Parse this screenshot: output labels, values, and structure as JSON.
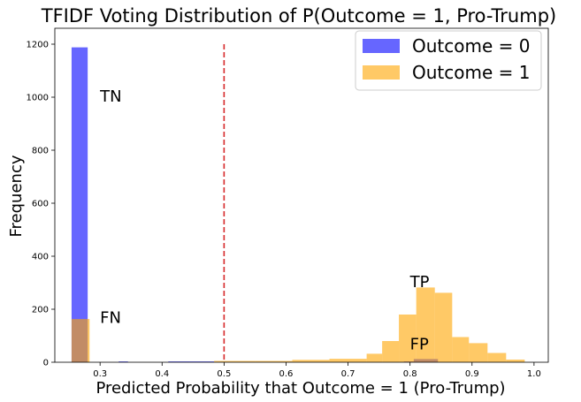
{
  "chart_data": {
    "type": "bar",
    "title": "TFIDF Voting Distribution of P(Outcome = 1, Pro-Trump)",
    "xlabel": "Predicted Probability that Outcome = 1 (Pro-Trump)",
    "ylabel": "Frequency",
    "xlim": [
      0.227,
      1.023
    ],
    "ylim": [
      0,
      1260
    ],
    "xticks": [
      "0.3",
      "0.4",
      "0.5",
      "0.6",
      "0.7",
      "0.8",
      "0.9",
      "1.0"
    ],
    "yticks": [
      "0",
      "200",
      "400",
      "600",
      "800",
      "1000",
      "1200"
    ],
    "threshold": 0.5,
    "threshold_color": "#d62728",
    "series": [
      {
        "name": "Outcome = 0",
        "color": "#0000ff",
        "opacity": 0.6,
        "bins": [
          {
            "x0": 0.254,
            "x1": 0.28,
            "y": 1188
          },
          {
            "x0": 0.33,
            "x1": 0.345,
            "y": 3
          },
          {
            "x0": 0.41,
            "x1": 0.445,
            "y": 3
          },
          {
            "x0": 0.445,
            "x1": 0.484,
            "y": 3
          },
          {
            "x0": 0.79,
            "x1": 0.806,
            "y": 3
          },
          {
            "x0": 0.806,
            "x1": 0.845,
            "y": 12
          }
        ]
      },
      {
        "name": "Outcome = 1",
        "color": "#ffa500",
        "opacity": 0.6,
        "bins": [
          {
            "x0": 0.254,
            "x1": 0.283,
            "y": 163
          },
          {
            "x0": 0.484,
            "x1": 0.55,
            "y": 5
          },
          {
            "x0": 0.55,
            "x1": 0.61,
            "y": 5
          },
          {
            "x0": 0.61,
            "x1": 0.67,
            "y": 9
          },
          {
            "x0": 0.67,
            "x1": 0.73,
            "y": 13
          },
          {
            "x0": 0.73,
            "x1": 0.755,
            "y": 32
          },
          {
            "x0": 0.755,
            "x1": 0.782,
            "y": 80
          },
          {
            "x0": 0.782,
            "x1": 0.81,
            "y": 180
          },
          {
            "x0": 0.81,
            "x1": 0.84,
            "y": 282
          },
          {
            "x0": 0.84,
            "x1": 0.868,
            "y": 262
          },
          {
            "x0": 0.868,
            "x1": 0.895,
            "y": 95
          },
          {
            "x0": 0.895,
            "x1": 0.925,
            "y": 72
          },
          {
            "x0": 0.925,
            "x1": 0.955,
            "y": 35
          },
          {
            "x0": 0.955,
            "x1": 0.985,
            "y": 10
          }
        ]
      }
    ],
    "annotations": [
      {
        "text": "TN",
        "x": 0.3,
        "y": 1000
      },
      {
        "text": "FN",
        "x": 0.3,
        "y": 165
      },
      {
        "text": "TP",
        "x": 0.8,
        "y": 300
      },
      {
        "text": "FP",
        "x": 0.8,
        "y": 65
      }
    ],
    "legend": {
      "placement": "top-right",
      "entries": [
        "Outcome = 0",
        "Outcome = 1"
      ]
    }
  }
}
